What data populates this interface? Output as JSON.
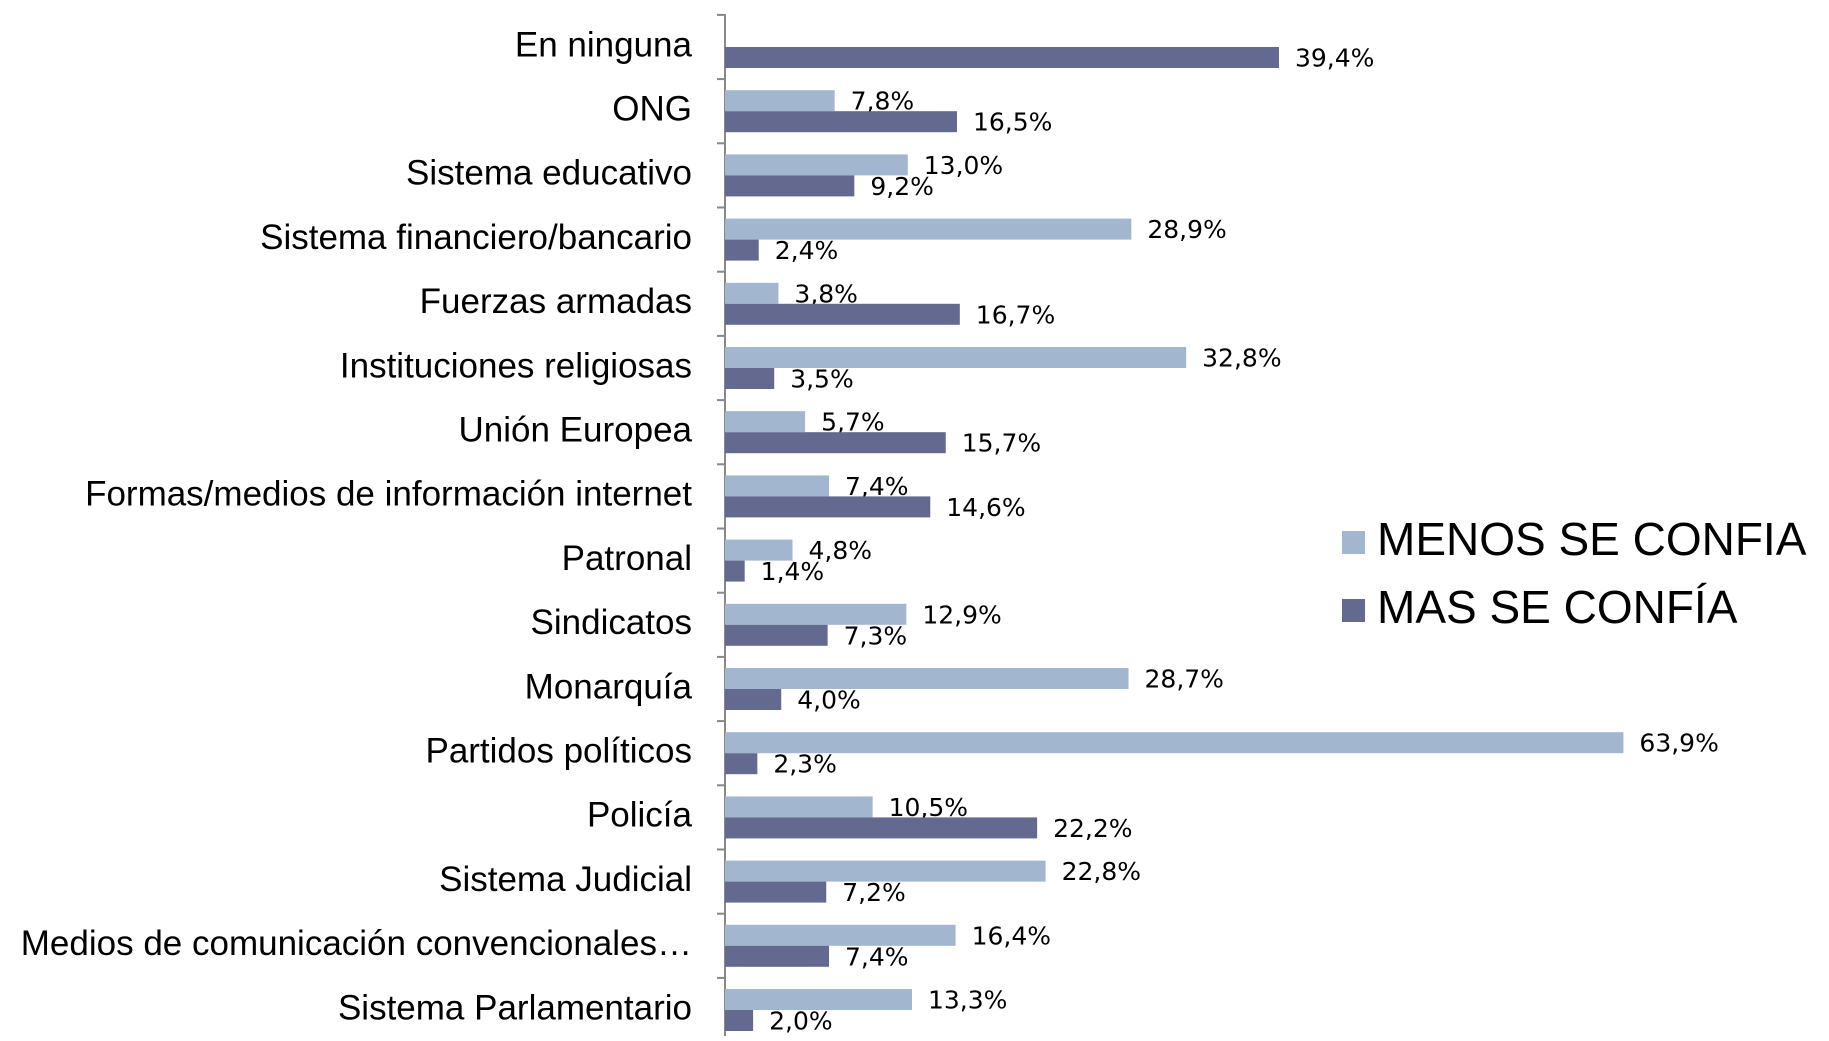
{
  "chart_data": {
    "type": "bar",
    "orientation": "horizontal",
    "categories": [
      "En ninguna",
      "ONG",
      "Sistema educativo",
      "Sistema financiero/bancario",
      "Fuerzas armadas",
      "Instituciones religiosas",
      "Unión Europea",
      "Formas/medios de información internet",
      "Patronal",
      "Sindicatos",
      "Monarquía",
      "Partidos políticos",
      "Policía",
      "Sistema Judicial",
      "Medios de comunicación convencionales…",
      "Sistema Parlamentario"
    ],
    "series": [
      {
        "name": "MENOS SE CONFIA",
        "color": "#a2b6cf",
        "values": [
          null,
          7.8,
          13.0,
          28.9,
          3.8,
          32.8,
          5.7,
          7.4,
          4.8,
          12.9,
          28.7,
          63.9,
          10.5,
          22.8,
          16.4,
          13.3
        ],
        "value_labels": [
          null,
          "7,8%",
          "13,0%",
          "28,9%",
          "3,8%",
          "32,8%",
          "5,7%",
          "7,4%",
          "4,8%",
          "12,9%",
          "28,7%",
          "63,9%",
          "10,5%",
          "22,8%",
          "16,4%",
          "13,3%"
        ]
      },
      {
        "name": "MAS SE CONFÍA",
        "color": "#64698f",
        "values": [
          39.4,
          16.5,
          9.2,
          2.4,
          16.7,
          3.5,
          15.7,
          14.6,
          1.4,
          7.3,
          4.0,
          2.3,
          22.2,
          7.2,
          7.4,
          2.0
        ],
        "value_labels": [
          "39,4%",
          "16,5%",
          "9,2%",
          "2,4%",
          "16,7%",
          "3,5%",
          "15,7%",
          "14,6%",
          "1,4%",
          "7,3%",
          "4,0%",
          "2,3%",
          "22,2%",
          "7,2%",
          "7,4%",
          "2,0%"
        ]
      }
    ],
    "legend": "right"
  }
}
